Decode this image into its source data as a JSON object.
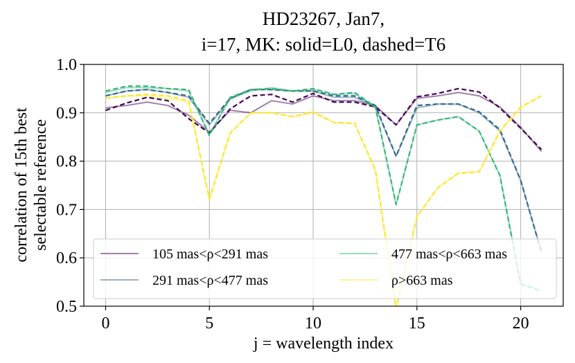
{
  "chart_data": {
    "type": "line",
    "title_lines": [
      "HD23267, Jan7,",
      "i=17, MK: solid=L0, dashed=T6"
    ],
    "xlabel": "j = wavelength index",
    "ylabel_lines": [
      "correlation of 15th best",
      "selectable reference"
    ],
    "xlim": [
      -1.05,
      22.05
    ],
    "ylim": [
      0.5,
      1.0
    ],
    "xticks": [
      0,
      5,
      10,
      15,
      20
    ],
    "yticks": [
      0.5,
      0.6,
      0.7,
      0.8,
      0.9,
      1.0
    ],
    "xtick_labels": [
      "0",
      "5",
      "10",
      "15",
      "20"
    ],
    "ytick_labels": [
      "0.5",
      "0.6",
      "0.7",
      "0.8",
      "0.9",
      "1.0"
    ],
    "grid": true,
    "legend_position": "lower-left",
    "x": [
      0,
      1,
      2,
      3,
      4,
      5,
      6,
      7,
      8,
      9,
      10,
      11,
      12,
      13,
      14,
      15,
      16,
      17,
      18,
      19,
      20,
      21
    ],
    "series": [
      {
        "name": "105 mas<ρ<291 mas",
        "color": "#440154",
        "solid": [
          0.91,
          0.915,
          0.922,
          0.915,
          0.895,
          0.86,
          0.905,
          0.9,
          0.925,
          0.918,
          0.935,
          0.925,
          0.925,
          0.915,
          0.875,
          0.93,
          0.935,
          0.942,
          0.935,
          0.912,
          0.87,
          0.82
        ],
        "dashed": [
          0.905,
          0.92,
          0.932,
          0.925,
          0.888,
          0.858,
          0.908,
          0.935,
          0.938,
          0.922,
          0.94,
          0.922,
          0.922,
          0.912,
          0.875,
          0.933,
          0.94,
          0.95,
          0.943,
          0.91,
          0.868,
          0.824
        ]
      },
      {
        "name": "291 mas<ρ<477 mas",
        "color": "#31688e",
        "solid": [
          0.935,
          0.945,
          0.948,
          0.942,
          0.932,
          0.875,
          0.928,
          0.948,
          0.948,
          0.945,
          0.945,
          0.932,
          0.932,
          0.912,
          0.81,
          0.91,
          0.918,
          0.918,
          0.9,
          0.862,
          0.76,
          0.612
        ],
        "dashed": [
          0.935,
          0.945,
          0.948,
          0.942,
          0.935,
          0.878,
          0.93,
          0.948,
          0.948,
          0.945,
          0.945,
          0.935,
          0.935,
          0.915,
          0.81,
          0.915,
          0.918,
          0.918,
          0.902,
          0.865,
          0.76,
          0.612
        ]
      },
      {
        "name": "477 mas<ρ<663 mas",
        "color": "#35b779",
        "solid": [
          0.942,
          0.952,
          0.952,
          0.95,
          0.945,
          0.855,
          0.93,
          0.945,
          0.952,
          0.945,
          0.948,
          0.938,
          0.94,
          0.91,
          0.71,
          0.875,
          0.885,
          0.892,
          0.862,
          0.77,
          0.548,
          0.532
        ],
        "dashed": [
          0.945,
          0.955,
          0.955,
          0.95,
          0.948,
          0.853,
          0.932,
          0.948,
          0.95,
          0.945,
          0.95,
          0.938,
          0.942,
          0.912,
          0.71,
          0.875,
          0.885,
          0.892,
          0.862,
          0.77,
          0.545,
          0.532
        ]
      },
      {
        "name": "ρ>663 mas",
        "color": "#fde725",
        "solid": [
          0.93,
          0.935,
          0.935,
          0.93,
          0.922,
          0.72,
          0.858,
          0.9,
          0.9,
          0.892,
          0.9,
          0.88,
          0.878,
          0.78,
          0.495,
          0.685,
          0.745,
          0.775,
          0.778,
          0.862,
          0.91,
          0.935
        ],
        "dashed": [
          0.93,
          0.935,
          0.938,
          0.935,
          0.925,
          0.722,
          0.858,
          0.9,
          0.9,
          0.892,
          0.902,
          0.88,
          0.878,
          0.782,
          0.495,
          0.685,
          0.745,
          0.775,
          0.778,
          0.862,
          0.912,
          0.935
        ]
      }
    ]
  }
}
